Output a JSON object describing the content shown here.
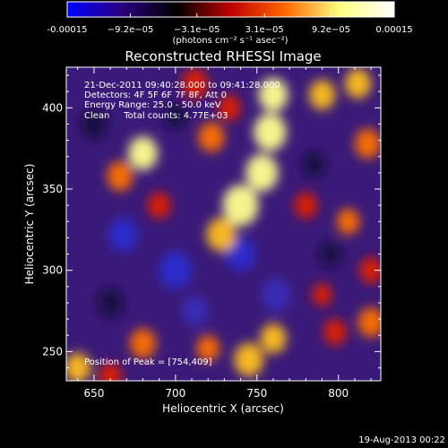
{
  "chart_data": {
    "type": "heatmap",
    "title": "Reconstructed RHESSI Image",
    "xlabel": "Heliocentric X (arcsec)",
    "ylabel": "Heliocentric Y (arcsec)",
    "xlim": [
      633,
      826
    ],
    "ylim": [
      232,
      425
    ],
    "x_ticks": [
      650,
      700,
      750,
      800
    ],
    "y_ticks": [
      250,
      300,
      350,
      400
    ],
    "colorbar": {
      "range": [
        -0.00015,
        0.00015
      ],
      "ticks": [
        -0.00015,
        -9.2e-05,
        -3.1e-05,
        3.1e-05,
        9.2e-05,
        0.00015
      ],
      "tick_labels": [
        "-0.00015",
        "−9.2e−05",
        "−3.1e−05",
        "3.1e−05",
        "9.2e−05",
        "0.00015"
      ],
      "unit_label": "(photons cm⁻² s⁻¹ asec⁻²)",
      "colors": [
        "#0000ff",
        "#2a0080",
        "#000000",
        "#c00000",
        "#ff6600",
        "#ffff80",
        "#ffffff"
      ]
    },
    "annotations": [
      "21-Dec-2011 09:40:28.000 to 09:41:28.000",
      "Detectors: 4F 5F 6F 7F 8F, Att 0",
      "Energy Range: 25.0 - 50.0 keV",
      "Clean     Total counts: 4.77E+03"
    ],
    "peak_label": "Position of Peak = [754,409]",
    "peak": [
      754,
      409
    ],
    "blobs": [
      {
        "x": 760,
        "y": 408,
        "v": 1.0,
        "r": 9
      },
      {
        "x": 758,
        "y": 385,
        "v": 0.9,
        "r": 10
      },
      {
        "x": 753,
        "y": 360,
        "v": 0.92,
        "r": 10
      },
      {
        "x": 740,
        "y": 340,
        "v": 0.95,
        "r": 11
      },
      {
        "x": 728,
        "y": 322,
        "v": 0.8,
        "r": 9
      },
      {
        "x": 680,
        "y": 372,
        "v": 0.9,
        "r": 9
      },
      {
        "x": 666,
        "y": 358,
        "v": 0.65,
        "r": 8
      },
      {
        "x": 690,
        "y": 340,
        "v": 0.55,
        "r": 7
      },
      {
        "x": 722,
        "y": 382,
        "v": 0.6,
        "r": 8
      },
      {
        "x": 712,
        "y": 415,
        "v": 0.55,
        "r": 8
      },
      {
        "x": 733,
        "y": 400,
        "v": 0.55,
        "r": 7
      },
      {
        "x": 790,
        "y": 408,
        "v": 0.75,
        "r": 8
      },
      {
        "x": 812,
        "y": 415,
        "v": 0.75,
        "r": 8
      },
      {
        "x": 818,
        "y": 378,
        "v": 0.7,
        "r": 8
      },
      {
        "x": 780,
        "y": 340,
        "v": 0.55,
        "r": 7
      },
      {
        "x": 806,
        "y": 330,
        "v": 0.6,
        "r": 7
      },
      {
        "x": 820,
        "y": 300,
        "v": 0.55,
        "r": 7
      },
      {
        "x": 820,
        "y": 268,
        "v": 0.65,
        "r": 8
      },
      {
        "x": 798,
        "y": 262,
        "v": 0.55,
        "r": 7
      },
      {
        "x": 760,
        "y": 258,
        "v": 0.75,
        "r": 8
      },
      {
        "x": 745,
        "y": 245,
        "v": 0.85,
        "r": 9
      },
      {
        "x": 720,
        "y": 252,
        "v": 0.6,
        "r": 7
      },
      {
        "x": 680,
        "y": 255,
        "v": 0.6,
        "r": 8
      },
      {
        "x": 640,
        "y": 240,
        "v": 0.75,
        "r": 8
      },
      {
        "x": 660,
        "y": 235,
        "v": 0.55,
        "r": 7
      },
      {
        "x": 790,
        "y": 285,
        "v": 0.45,
        "r": 6
      },
      {
        "x": 700,
        "y": 300,
        "v": -0.7,
        "r": 10
      },
      {
        "x": 740,
        "y": 310,
        "v": -0.7,
        "r": 9
      },
      {
        "x": 762,
        "y": 285,
        "v": -0.55,
        "r": 9
      },
      {
        "x": 668,
        "y": 322,
        "v": -0.6,
        "r": 9
      },
      {
        "x": 712,
        "y": 275,
        "v": -0.5,
        "r": 8
      },
      {
        "x": 660,
        "y": 280,
        "v": -0.35,
        "r": 8
      },
      {
        "x": 795,
        "y": 310,
        "v": -0.3,
        "r": 7
      },
      {
        "x": 650,
        "y": 390,
        "v": -0.3,
        "r": 8
      },
      {
        "x": 700,
        "y": 395,
        "v": -0.35,
        "r": 7
      },
      {
        "x": 785,
        "y": 365,
        "v": -0.3,
        "r": 7
      }
    ]
  },
  "footer_date": "19-Aug-2013 00:22"
}
